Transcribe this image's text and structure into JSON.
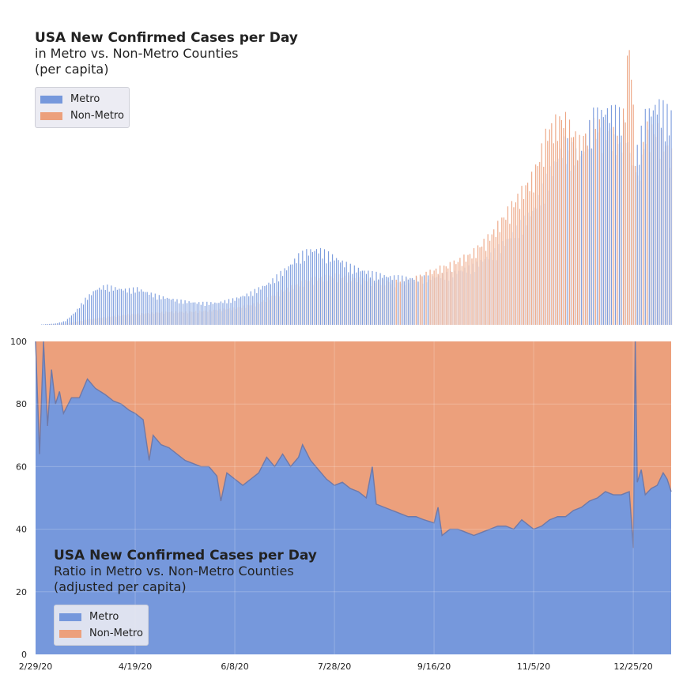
{
  "colors": {
    "metro": "#7698dc",
    "non_metro": "#eca07c",
    "plot_bg": "#eaeaf2",
    "grid": "#ffffff"
  },
  "top": {
    "title": "USA New Confirmed Cases per Day",
    "subtitle_1": "in Metro vs. Non-Metro Counties",
    "subtitle_2": "(per capita)",
    "legend": [
      "Metro",
      "Non-Metro"
    ]
  },
  "bottom": {
    "title": "USA New Confirmed Cases per Day",
    "subtitle_1": "Ratio in Metro vs. Non-Metro Counties",
    "subtitle_2": "(adjusted per capita)",
    "legend": [
      "Metro",
      "Non-Metro"
    ]
  },
  "chart_data": [
    {
      "type": "bar",
      "x_range": [
        "2/29/20",
        "1/13/21"
      ],
      "y_axis": "hidden",
      "series": [
        {
          "name": "Metro",
          "points": [
            [
              "2/29/20",
              0
            ],
            [
              "3/10/20",
              1
            ],
            [
              "3/15/20",
              3
            ],
            [
              "3/20/20",
              10
            ],
            [
              "3/25/20",
              20
            ],
            [
              "3/30/20",
              27
            ],
            [
              "4/4/20",
              30
            ],
            [
              "4/10/20",
              28
            ],
            [
              "4/15/20",
              27
            ],
            [
              "4/20/20",
              28
            ],
            [
              "4/25/20",
              25
            ],
            [
              "5/1/20",
              22
            ],
            [
              "5/10/20",
              19
            ],
            [
              "5/20/20",
              17
            ],
            [
              "5/30/20",
              17
            ],
            [
              "6/8/20",
              20
            ],
            [
              "6/15/20",
              24
            ],
            [
              "6/25/20",
              32
            ],
            [
              "7/5/20",
              45
            ],
            [
              "7/10/20",
              53
            ],
            [
              "7/15/20",
              57
            ],
            [
              "7/20/20",
              58
            ],
            [
              "7/28/20",
              52
            ],
            [
              "8/5/20",
              45
            ],
            [
              "8/15/20",
              40
            ],
            [
              "8/25/20",
              37
            ],
            [
              "9/5/20",
              36
            ],
            [
              "9/16/20",
              37
            ],
            [
              "9/25/20",
              40
            ],
            [
              "10/5/20",
              45
            ],
            [
              "10/15/20",
              55
            ],
            [
              "10/25/20",
              70
            ],
            [
              "11/5/20",
              90
            ],
            [
              "11/12/20",
              115
            ],
            [
              "11/20/20",
              140
            ],
            [
              "11/28/20",
              130
            ],
            [
              "12/5/20",
              160
            ],
            [
              "12/12/20",
              165
            ],
            [
              "12/19/20",
              160
            ],
            [
              "12/25/20",
              120
            ],
            [
              "12/31/20",
              160
            ],
            [
              "1/6/21",
              170
            ],
            [
              "1/13/21",
              160
            ]
          ]
        },
        {
          "name": "Non-Metro",
          "points": [
            [
              "2/29/20",
              0
            ],
            [
              "3/15/20",
              1
            ],
            [
              "3/25/20",
              4
            ],
            [
              "4/4/20",
              6
            ],
            [
              "4/15/20",
              8
            ],
            [
              "4/25/20",
              9
            ],
            [
              "5/5/20",
              10
            ],
            [
              "5/15/20",
              10
            ],
            [
              "5/25/20",
              11
            ],
            [
              "6/8/20",
              13
            ],
            [
              "6/20/20",
              17
            ],
            [
              "7/1/20",
              26
            ],
            [
              "7/15/20",
              35
            ],
            [
              "7/28/20",
              38
            ],
            [
              "8/10/20",
              35
            ],
            [
              "8/25/20",
              33
            ],
            [
              "9/5/20",
              35
            ],
            [
              "9/16/20",
              42
            ],
            [
              "9/25/20",
              47
            ],
            [
              "10/5/20",
              55
            ],
            [
              "10/15/20",
              70
            ],
            [
              "10/25/20",
              92
            ],
            [
              "11/5/20",
              115
            ],
            [
              "11/12/20",
              150
            ],
            [
              "11/20/20",
              160
            ],
            [
              "11/28/20",
              140
            ],
            [
              "12/5/20",
              155
            ],
            [
              "12/12/20",
              150
            ],
            [
              "12/19/20",
              140
            ],
            [
              "12/23/20",
              220
            ],
            [
              "12/27/20",
              110
            ],
            [
              "12/31/20",
              150
            ],
            [
              "1/6/21",
              150
            ],
            [
              "1/13/21",
              130
            ]
          ]
        }
      ]
    },
    {
      "type": "area",
      "stacked_percent": true,
      "x_ticks": [
        "2/29/20",
        "4/19/20",
        "6/8/20",
        "7/28/20",
        "9/16/20",
        "11/5/20",
        "12/25/20"
      ],
      "y_ticks": [
        0,
        20,
        40,
        60,
        80,
        100
      ],
      "ylim": [
        0,
        100
      ],
      "x_range": [
        "2/29/20",
        "1/13/21"
      ],
      "grid": true,
      "legend_position": "lower-left",
      "series": [
        {
          "name": "Metro",
          "points": [
            [
              "2/29/20",
              100
            ],
            [
              "3/2/20",
              64
            ],
            [
              "3/4/20",
              100
            ],
            [
              "3/6/20",
              73
            ],
            [
              "3/8/20",
              91
            ],
            [
              "3/10/20",
              80
            ],
            [
              "3/12/20",
              84
            ],
            [
              "3/14/20",
              77
            ],
            [
              "3/18/20",
              82
            ],
            [
              "3/22/20",
              82
            ],
            [
              "3/26/20",
              88
            ],
            [
              "3/30/20",
              85
            ],
            [
              "4/4/20",
              83
            ],
            [
              "4/8/20",
              81
            ],
            [
              "4/12/20",
              80
            ],
            [
              "4/16/20",
              78
            ],
            [
              "4/19/20",
              77
            ],
            [
              "4/23/20",
              75
            ],
            [
              "4/26/20",
              62
            ],
            [
              "4/28/20",
              70
            ],
            [
              "5/2/20",
              67
            ],
            [
              "5/6/20",
              66
            ],
            [
              "5/10/20",
              64
            ],
            [
              "5/14/20",
              62
            ],
            [
              "5/18/20",
              61
            ],
            [
              "5/22/20",
              60
            ],
            [
              "5/26/20",
              60
            ],
            [
              "5/30/20",
              57
            ],
            [
              "6/1/20",
              49
            ],
            [
              "6/4/20",
              58
            ],
            [
              "6/8/20",
              56
            ],
            [
              "6/12/20",
              54
            ],
            [
              "6/16/20",
              56
            ],
            [
              "6/20/20",
              58
            ],
            [
              "6/24/20",
              63
            ],
            [
              "6/28/20",
              60
            ],
            [
              "7/2/20",
              64
            ],
            [
              "7/6/20",
              60
            ],
            [
              "7/10/20",
              63
            ],
            [
              "7/12/20",
              67
            ],
            [
              "7/16/20",
              62
            ],
            [
              "7/20/20",
              59
            ],
            [
              "7/24/20",
              56
            ],
            [
              "7/28/20",
              54
            ],
            [
              "8/1/20",
              55
            ],
            [
              "8/5/20",
              53
            ],
            [
              "8/9/20",
              52
            ],
            [
              "8/13/20",
              50
            ],
            [
              "8/16/20",
              60
            ],
            [
              "8/18/20",
              48
            ],
            [
              "8/22/20",
              47
            ],
            [
              "8/26/20",
              46
            ],
            [
              "8/30/20",
              45
            ],
            [
              "9/3/20",
              44
            ],
            [
              "9/7/20",
              44
            ],
            [
              "9/11/20",
              43
            ],
            [
              "9/16/20",
              42
            ],
            [
              "9/18/20",
              47
            ],
            [
              "9/20/20",
              38
            ],
            [
              "9/24/20",
              40
            ],
            [
              "9/28/20",
              40
            ],
            [
              "10/2/20",
              39
            ],
            [
              "10/6/20",
              38
            ],
            [
              "10/10/20",
              39
            ],
            [
              "10/14/20",
              40
            ],
            [
              "10/18/20",
              41
            ],
            [
              "10/22/20",
              41
            ],
            [
              "10/26/20",
              40
            ],
            [
              "10/30/20",
              43
            ],
            [
              "11/5/20",
              40
            ],
            [
              "11/9/20",
              41
            ],
            [
              "11/13/20",
              43
            ],
            [
              "11/17/20",
              44
            ],
            [
              "11/21/20",
              44
            ],
            [
              "11/25/20",
              46
            ],
            [
              "11/29/20",
              47
            ],
            [
              "12/3/20",
              49
            ],
            [
              "12/7/20",
              50
            ],
            [
              "12/11/20",
              52
            ],
            [
              "12/15/20",
              51
            ],
            [
              "12/19/20",
              51
            ],
            [
              "12/23/20",
              52
            ],
            [
              "12/25/20",
              34
            ],
            [
              "12/26/20",
              100
            ],
            [
              "12/27/20",
              55
            ],
            [
              "12/29/20",
              59
            ],
            [
              "12/31/20",
              51
            ],
            [
              "1/3/21",
              53
            ],
            [
              "1/6/21",
              54
            ],
            [
              "1/9/21",
              58
            ],
            [
              "1/11/21",
              56
            ],
            [
              "1/13/21",
              52
            ]
          ]
        },
        {
          "name": "Non-Metro",
          "fills_to": 100
        }
      ]
    }
  ]
}
